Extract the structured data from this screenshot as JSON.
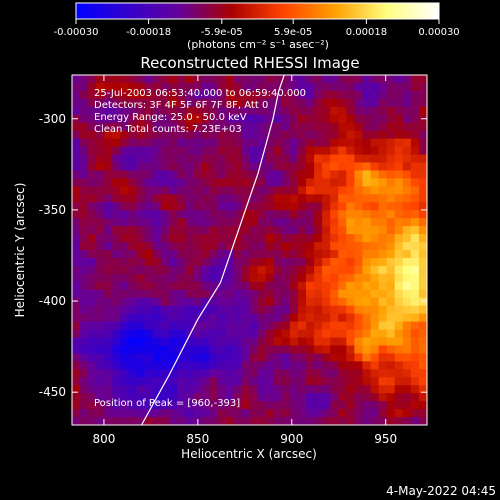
{
  "chart_data": {
    "type": "heatmap",
    "title": "Reconstructed RHESSI Image",
    "xlabel": "Heliocentric X (arcsec)",
    "ylabel": "Heliocentric Y (arcsec)",
    "xlim": [
      783,
      972
    ],
    "ylim": [
      -468,
      -276
    ],
    "x_ticks": [
      800,
      850,
      900,
      950
    ],
    "y_ticks": [
      -300,
      -350,
      -400,
      -450
    ],
    "colorbar": {
      "range": [
        -0.0003,
        0.0003
      ],
      "tick_values": [
        -0.0003,
        -0.00018,
        -5.9e-05,
        5.9e-05,
        0.00018,
        0.0003
      ],
      "tick_labels": [
        "-0.00030",
        "-0.00018",
        "-5.9e-05",
        "5.9e-05",
        "0.00018",
        "0.00030"
      ],
      "unit_label": "(photons cm⁻² s⁻¹ asec⁻²)",
      "colormap": [
        "#0000ff",
        "#3300cc",
        "#660099",
        "#aa0000",
        "#ff4400",
        "#ffa000",
        "#ffff80",
        "#ffffff"
      ]
    },
    "info_lines": [
      "25-Jul-2003 06:53:40.000 to 06:59:40.000",
      "Detectors: 3F 4F 5F 6F 7F 8F, Att 0",
      "Energy Range: 25.0 - 50.0 keV",
      "Clean    Total counts: 7.23E+03"
    ],
    "peak_text": "Position of Peak = [960,-393]",
    "peak": [
      960,
      -393
    ],
    "limb_curve": [
      [
        820,
        -468
      ],
      [
        835,
        -440
      ],
      [
        850,
        -410
      ],
      [
        862,
        -390
      ],
      [
        872,
        -360
      ],
      [
        882,
        -330
      ],
      [
        890,
        -300
      ],
      [
        893,
        -285
      ],
      [
        896,
        -276
      ]
    ],
    "footer_date": "4-May-2022 04:45"
  },
  "colors": {
    "background": "#000000",
    "axes": "#ffffff",
    "low": "#4b0096",
    "high": "#ffff80"
  }
}
